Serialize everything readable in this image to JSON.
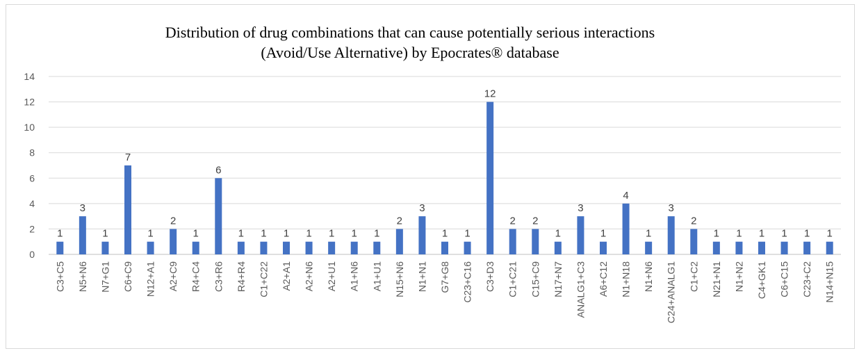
{
  "chart_data": {
    "type": "bar",
    "title_line1": "Distribution of drug combinations that can cause potentially serious interactions",
    "title_line2": "(Avoid/Use Alternative) by Epocrates® database",
    "xlabel": "",
    "ylabel": "",
    "ylim": [
      0,
      14
    ],
    "yticks": [
      0,
      2,
      4,
      6,
      8,
      10,
      12,
      14
    ],
    "grid": true,
    "legend": "none",
    "bar_color": "#4472c4",
    "categories": [
      "C3+C5",
      "N5+N6",
      "N7+G1",
      "C6+C9",
      "N12+A1",
      "A2+C9",
      "R4+C4",
      "C3+R6",
      "R4+R4",
      "C1+C22",
      "A2+A1",
      "A2+N6",
      "A2+U1",
      "A1+N6",
      "A1+U1",
      "N15+N6",
      "N1+N1",
      "G7+G8",
      "C23+C16",
      "C3+D3",
      "C1+C21",
      "C15+C9",
      "N17+N7",
      "ANALG1+C3",
      "A6+C12",
      "N1+N18",
      "N1+N6",
      "C24+ANALG1",
      "C1+C2",
      "N21+N1",
      "N1+N2",
      "C4+GK1",
      "C6+C15",
      "C23+C2",
      "N14+N15"
    ],
    "values": [
      1,
      3,
      1,
      7,
      1,
      2,
      1,
      6,
      1,
      1,
      1,
      1,
      1,
      1,
      1,
      2,
      3,
      1,
      1,
      12,
      2,
      2,
      1,
      3,
      1,
      4,
      1,
      3,
      2,
      1,
      1,
      1,
      1,
      1,
      1
    ]
  }
}
